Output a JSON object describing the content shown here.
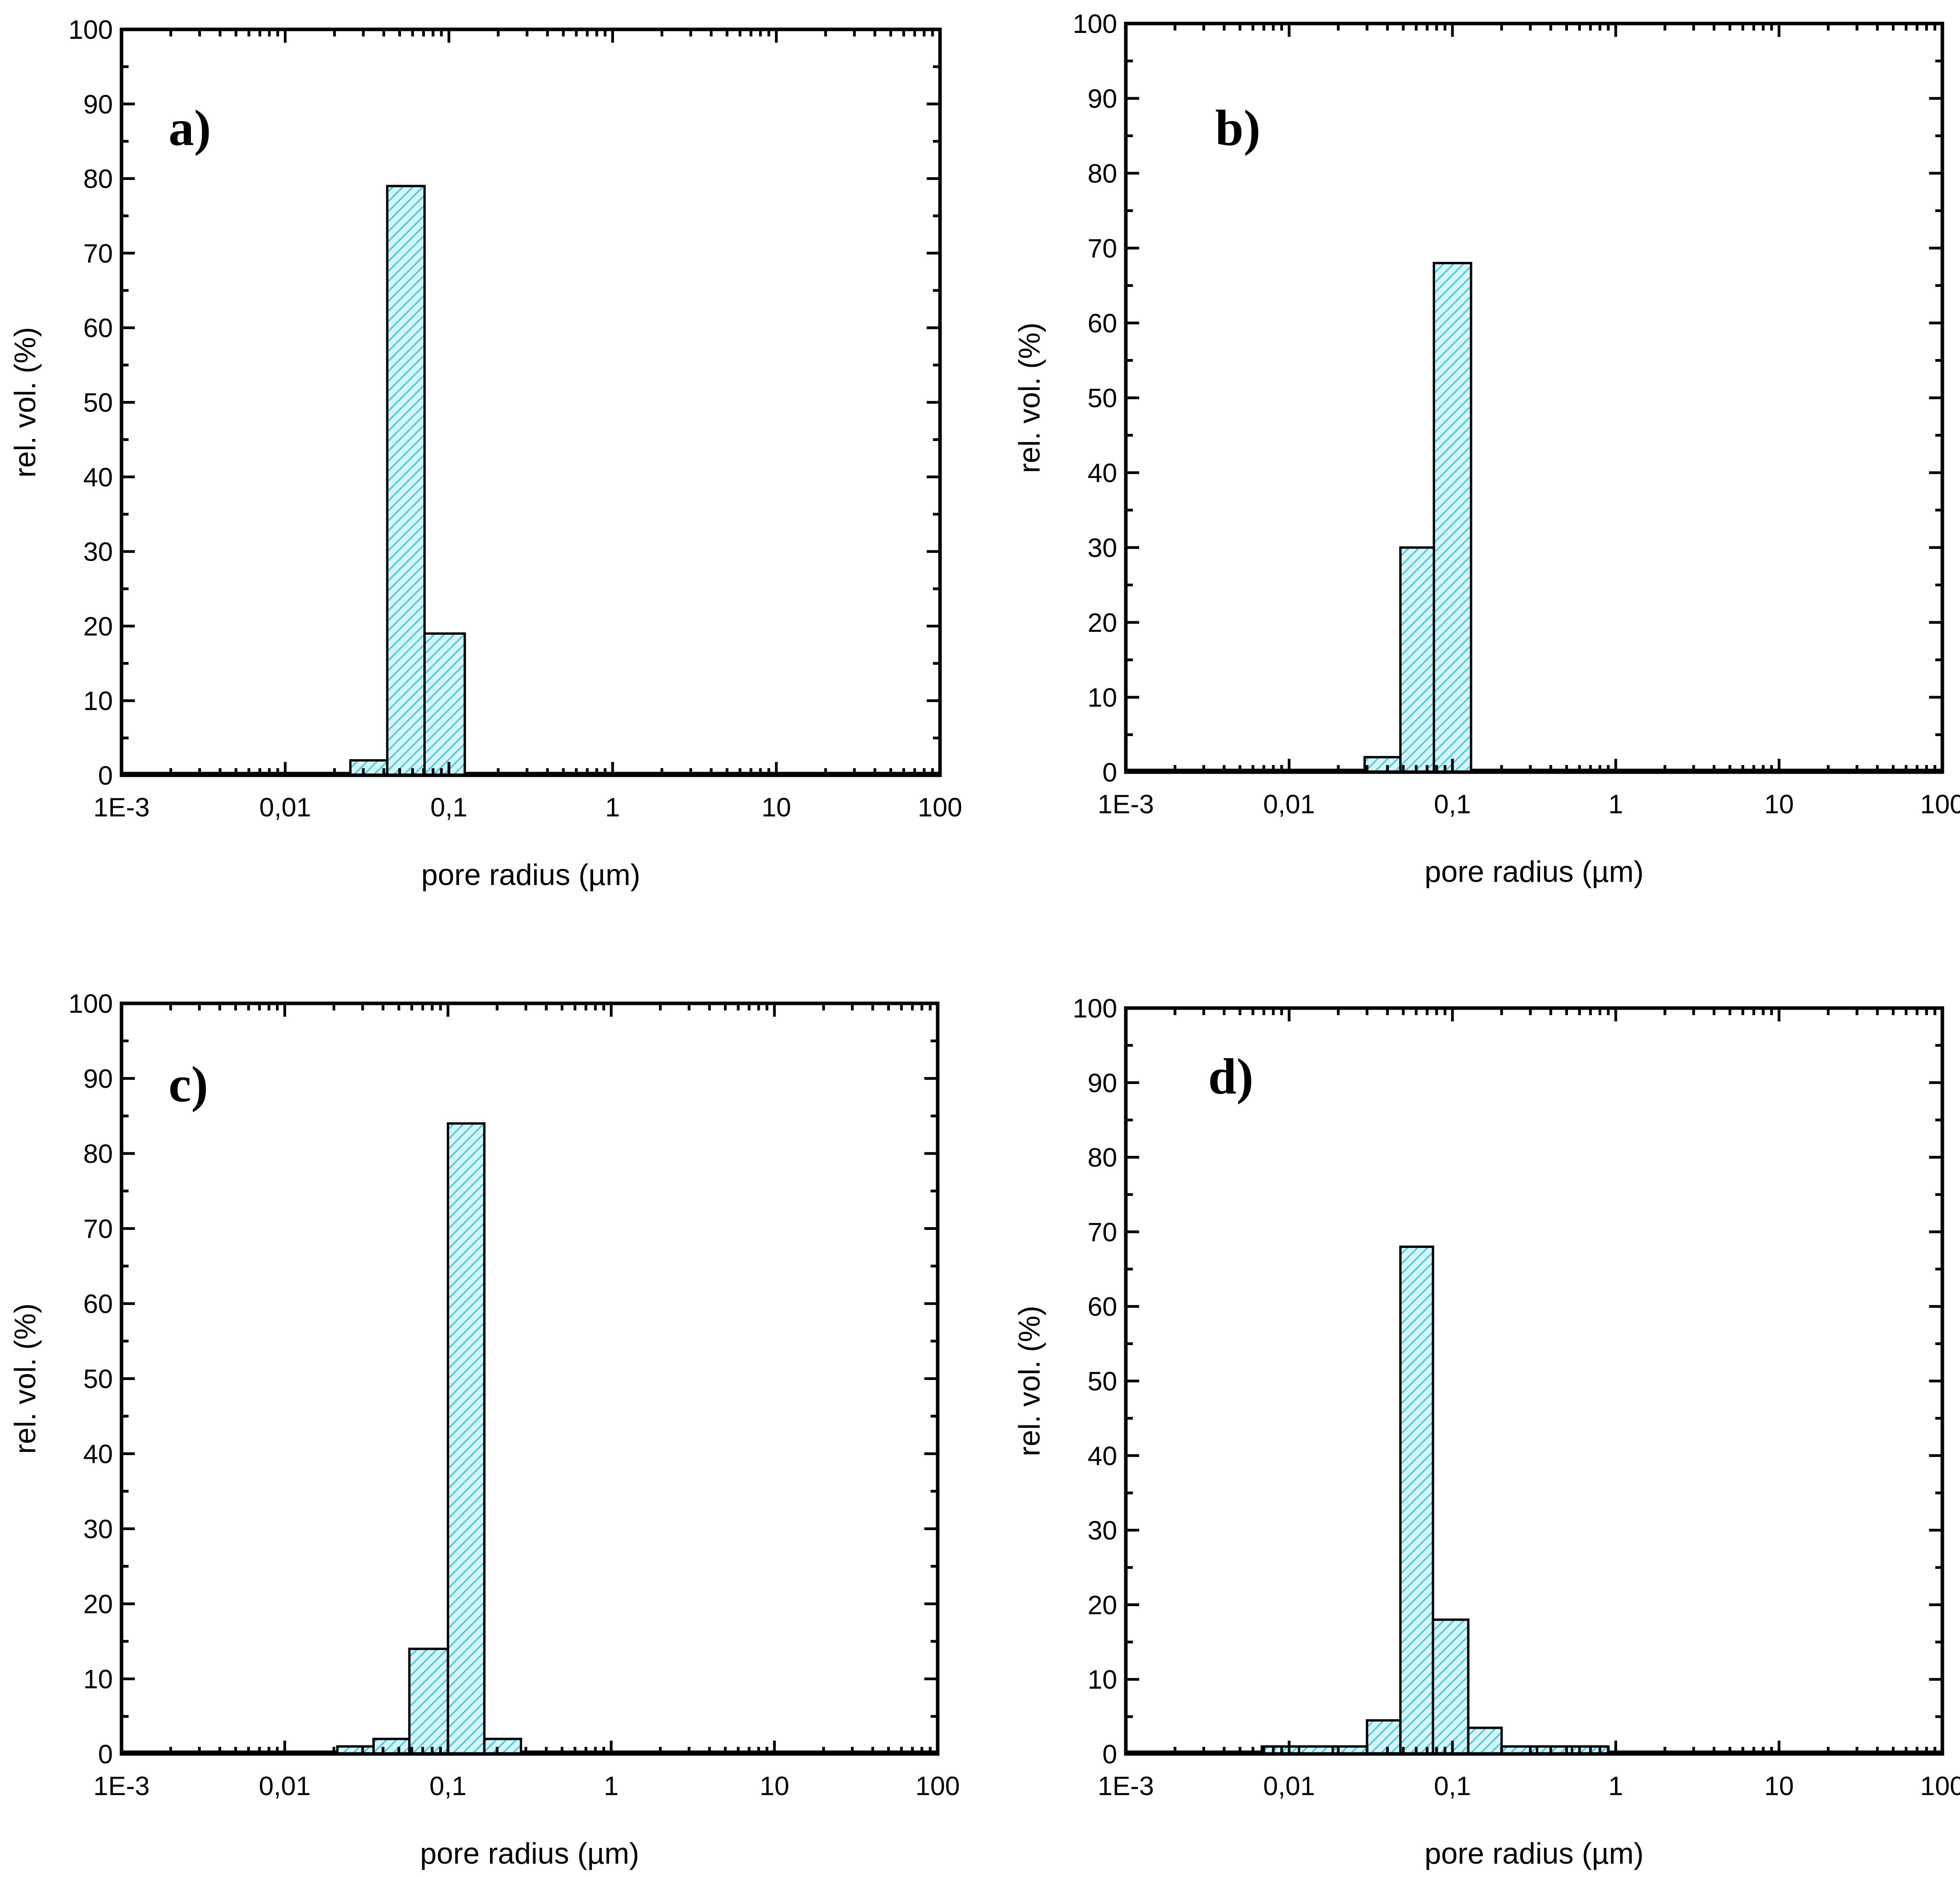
{
  "chart_data": [
    {
      "type": "bar",
      "panel": "a)",
      "xlabel": "pore radius (µm)",
      "ylabel": "rel. vol. (%)",
      "xscale": "log",
      "xlim": [
        0.001,
        100
      ],
      "ylim": [
        0,
        100
      ],
      "xticks": [
        0.001,
        0.01,
        0.1,
        1,
        10,
        100
      ],
      "xtick_labels": [
        "1E-3",
        "0,01",
        "0,1",
        "1",
        "10",
        "100"
      ],
      "yticks": [
        0,
        10,
        20,
        30,
        40,
        50,
        60,
        70,
        80,
        90,
        100
      ],
      "ytick_labels": [
        "0",
        "10",
        "20",
        "30",
        "40",
        "50",
        "60",
        "70",
        "80",
        "90",
        "100"
      ],
      "bins": [
        {
          "x0": 0.001,
          "x1": 0.025,
          "value": 0.3
        },
        {
          "x0": 0.025,
          "x1": 0.042,
          "value": 2
        },
        {
          "x0": 0.042,
          "x1": 0.071,
          "value": 79
        },
        {
          "x0": 0.071,
          "x1": 0.125,
          "value": 19
        },
        {
          "x0": 0.125,
          "x1": 100,
          "value": 0.3
        }
      ]
    },
    {
      "type": "bar",
      "panel": "b)",
      "xlabel": "pore radius (µm)",
      "ylabel": "rel. vol. (%)",
      "xscale": "log",
      "xlim": [
        0.001,
        100
      ],
      "ylim": [
        0,
        100
      ],
      "xticks": [
        0.001,
        0.01,
        0.1,
        1,
        10,
        100
      ],
      "xtick_labels": [
        "1E-3",
        "0,01",
        "0,1",
        "1",
        "10",
        "100"
      ],
      "yticks": [
        0,
        10,
        20,
        30,
        40,
        50,
        60,
        70,
        80,
        90,
        100
      ],
      "ytick_labels": [
        "0",
        "10",
        "20",
        "30",
        "40",
        "50",
        "60",
        "70",
        "80",
        "90",
        "100"
      ],
      "bins": [
        {
          "x0": 0.001,
          "x1": 0.029,
          "value": 0.3
        },
        {
          "x0": 0.029,
          "x1": 0.048,
          "value": 2
        },
        {
          "x0": 0.048,
          "x1": 0.077,
          "value": 30
        },
        {
          "x0": 0.077,
          "x1": 0.13,
          "value": 68
        },
        {
          "x0": 0.13,
          "x1": 100,
          "value": 0.3
        }
      ]
    },
    {
      "type": "bar",
      "panel": "c)",
      "xlabel": "pore radius (µm)",
      "ylabel": "rel. vol. (%)",
      "xscale": "log",
      "xlim": [
        0.001,
        100
      ],
      "ylim": [
        0,
        100
      ],
      "xticks": [
        0.001,
        0.01,
        0.1,
        1,
        10,
        100
      ],
      "xtick_labels": [
        "1E-3",
        "0,01",
        "0,1",
        "1",
        "10",
        "100"
      ],
      "yticks": [
        0,
        10,
        20,
        30,
        40,
        50,
        60,
        70,
        80,
        90,
        100
      ],
      "ytick_labels": [
        "0",
        "10",
        "20",
        "30",
        "40",
        "50",
        "60",
        "70",
        "80",
        "90",
        "100"
      ],
      "bins": [
        {
          "x0": 0.001,
          "x1": 0.021,
          "value": 0.3
        },
        {
          "x0": 0.021,
          "x1": 0.035,
          "value": 1
        },
        {
          "x0": 0.035,
          "x1": 0.058,
          "value": 2
        },
        {
          "x0": 0.058,
          "x1": 0.1,
          "value": 14
        },
        {
          "x0": 0.1,
          "x1": 0.167,
          "value": 84
        },
        {
          "x0": 0.167,
          "x1": 0.28,
          "value": 2
        },
        {
          "x0": 0.28,
          "x1": 100,
          "value": 0.3
        }
      ]
    },
    {
      "type": "bar",
      "panel": "d)",
      "xlabel": "pore radius (µm)",
      "ylabel": "rel. vol. (%)",
      "xscale": "log",
      "xlim": [
        0.001,
        100
      ],
      "ylim": [
        0,
        100
      ],
      "xticks": [
        0.001,
        0.01,
        0.1,
        1,
        10,
        100
      ],
      "xtick_labels": [
        "1E-3",
        "0,01",
        "0,1",
        "1",
        "10",
        "100"
      ],
      "yticks": [
        0,
        10,
        20,
        30,
        40,
        50,
        60,
        70,
        80,
        90,
        100
      ],
      "ytick_labels": [
        "0",
        "10",
        "20",
        "30",
        "40",
        "50",
        "60",
        "70",
        "80",
        "90",
        "100"
      ],
      "bins": [
        {
          "x0": 0.001,
          "x1": 0.0068,
          "value": 0.3
        },
        {
          "x0": 0.0068,
          "x1": 0.0115,
          "value": 1
        },
        {
          "x0": 0.0115,
          "x1": 0.0185,
          "value": 1
        },
        {
          "x0": 0.0185,
          "x1": 0.03,
          "value": 1
        },
        {
          "x0": 0.03,
          "x1": 0.048,
          "value": 4.5
        },
        {
          "x0": 0.048,
          "x1": 0.076,
          "value": 68
        },
        {
          "x0": 0.076,
          "x1": 0.125,
          "value": 18
        },
        {
          "x0": 0.125,
          "x1": 0.2,
          "value": 3.5
        },
        {
          "x0": 0.2,
          "x1": 0.33,
          "value": 1
        },
        {
          "x0": 0.33,
          "x1": 0.54,
          "value": 1
        },
        {
          "x0": 0.54,
          "x1": 0.9,
          "value": 1
        },
        {
          "x0": 0.9,
          "x1": 100,
          "value": 0.3
        }
      ]
    }
  ],
  "colors": {
    "bar_fill": "#d4f6fb",
    "hatch": "#4fc9dc",
    "axis": "#000000"
  }
}
